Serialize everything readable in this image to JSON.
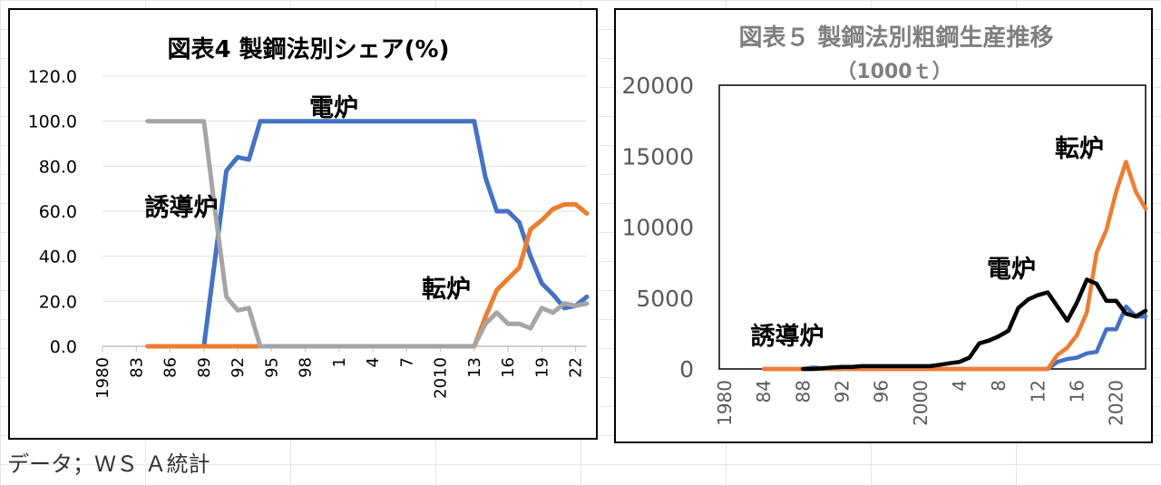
{
  "note": "データ；ＷＳ Ａ統計",
  "chart_data": [
    {
      "type": "line",
      "title": "図表4 製鋼法別シェア(%)",
      "xlabel": "",
      "ylabel": "",
      "ylim": [
        0,
        120
      ],
      "y_ticks": [
        "0.0",
        "20.0",
        "40.0",
        "60.0",
        "80.0",
        "100.0",
        "120.0"
      ],
      "xlim": [
        1980,
        2023
      ],
      "x_tick_values": [
        1980,
        1983,
        1986,
        1989,
        1992,
        1995,
        1998,
        2001,
        2004,
        2007,
        2010,
        2013,
        2016,
        2019,
        2022
      ],
      "x_tick_labels": [
        "1980",
        "83",
        "86",
        "89",
        "92",
        "95",
        "98",
        "1",
        "4",
        "7",
        "2010",
        "13",
        "16",
        "19",
        "22"
      ],
      "annotations": [
        "電炉",
        "誘導炉",
        "転炉"
      ],
      "colors": {
        "electric": "#4472c4",
        "bof": "#ed7d31",
        "induction": "#a5a5a5"
      },
      "series": [
        {
          "name": "電炉",
          "color": "#4472c4",
          "x": [
            1984,
            1989,
            1991,
            1992,
            1993,
            1994,
            2013,
            2014,
            2015,
            2016,
            2017,
            2018,
            2019,
            2020,
            2021,
            2022,
            2023
          ],
          "y": [
            0,
            0,
            78,
            84,
            83,
            100,
            100,
            75,
            60,
            60,
            55,
            40,
            28,
            23,
            17,
            18,
            22
          ]
        },
        {
          "name": "転炉",
          "color": "#ed7d31",
          "x": [
            1984,
            2013,
            2014,
            2015,
            2016,
            2017,
            2018,
            2019,
            2020,
            2021,
            2022,
            2023
          ],
          "y": [
            0,
            0,
            13,
            25,
            30,
            35,
            52,
            56,
            61,
            63,
            63,
            59
          ]
        },
        {
          "name": "誘導炉",
          "color": "#a5a5a5",
          "x": [
            1984,
            1989,
            1990,
            1991,
            1992,
            1993,
            1994,
            2013,
            2014,
            2015,
            2016,
            2017,
            2018,
            2019,
            2020,
            2021,
            2022,
            2023
          ],
          "y": [
            100,
            100,
            60,
            22,
            16,
            17,
            0,
            0,
            10,
            15,
            10,
            10,
            8,
            17,
            15,
            19,
            18,
            19
          ]
        }
      ]
    },
    {
      "type": "line",
      "title": "図表５ 製鋼法別粗鋼生産推移",
      "unit": "（1000ｔ）",
      "xlabel": "",
      "ylabel": "",
      "ylim": [
        0,
        20000
      ],
      "y_ticks": [
        "0",
        "5000",
        "10000",
        "15000",
        "20000"
      ],
      "xlim": [
        1980,
        2023
      ],
      "x_tick_values": [
        1980,
        1984,
        1988,
        1992,
        1996,
        2000,
        2004,
        2008,
        2012,
        2016,
        2020
      ],
      "x_tick_labels": [
        "1980",
        "84",
        "88",
        "92",
        "96",
        "2000",
        "4",
        "8",
        "12",
        "16",
        "2020"
      ],
      "annotations": [
        "転炉",
        "電炉",
        "誘導炉"
      ],
      "series": [
        {
          "name": "誘導炉",
          "color": "#4472c4",
          "x": [
            1984,
            1988,
            1989,
            1990,
            1991,
            1992,
            1993,
            1994,
            2013,
            2014,
            2015,
            2016,
            2017,
            2018,
            2019,
            2020,
            2021,
            2022,
            2023
          ],
          "y": [
            0,
            0,
            100,
            50,
            0,
            0,
            0,
            0,
            0,
            500,
            700,
            800,
            1100,
            1200,
            2800,
            2800,
            4400,
            3700,
            3700
          ]
        },
        {
          "name": "転炉",
          "color": "#ed7d31",
          "x": [
            1984,
            2013,
            2014,
            2015,
            2016,
            2017,
            2018,
            2019,
            2020,
            2021,
            2022,
            2023
          ],
          "y": [
            0,
            0,
            1000,
            1500,
            2400,
            4000,
            8200,
            9800,
            12500,
            14600,
            12500,
            11300
          ]
        },
        {
          "name": "電炉",
          "color": "#000000",
          "x": [
            1988,
            1989,
            1990,
            1991,
            1992,
            1993,
            1994,
            1995,
            1996,
            1997,
            1998,
            1999,
            2000,
            2001,
            2002,
            2003,
            2004,
            2005,
            2006,
            2007,
            2008,
            2009,
            2010,
            2011,
            2012,
            2013,
            2014,
            2015,
            2016,
            2017,
            2018,
            2019,
            2020,
            2021,
            2022,
            2023
          ],
          "y": [
            0,
            0,
            50,
            100,
            150,
            150,
            200,
            200,
            200,
            200,
            200,
            200,
            200,
            200,
            300,
            400,
            500,
            800,
            1800,
            2000,
            2300,
            2700,
            4300,
            4900,
            5200,
            5400,
            4400,
            3400,
            4700,
            6300,
            6000,
            4800,
            4800,
            3900,
            3700,
            4100
          ]
        }
      ]
    }
  ]
}
